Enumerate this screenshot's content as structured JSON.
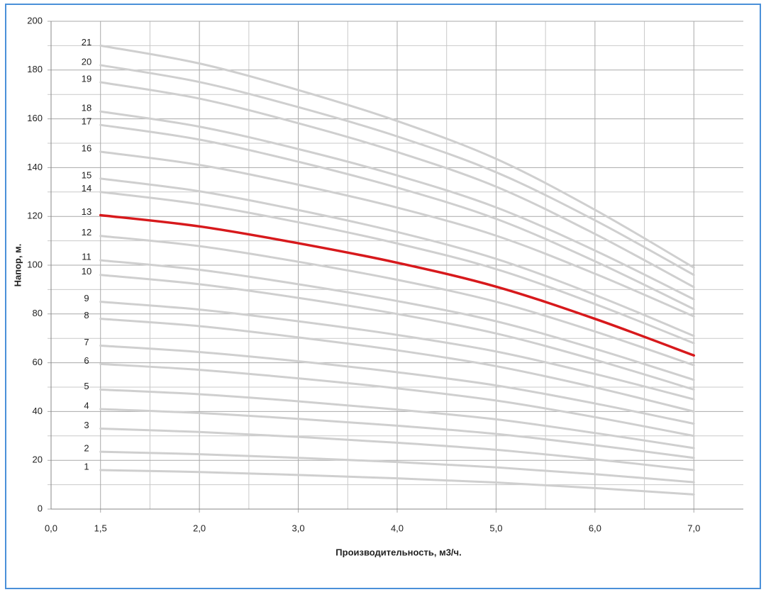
{
  "chart_data": {
    "type": "line",
    "x_axis_label": "Производительность, м3/ч.",
    "y_axis_label": "Напор, м.",
    "x_origin_label": "0,0",
    "categories": [
      "1,5",
      "2,0",
      "3,0",
      "4,0",
      "5,0",
      "6,0",
      "7,0"
    ],
    "ylim": [
      0,
      200
    ],
    "yticks": [
      0,
      20,
      40,
      60,
      80,
      100,
      120,
      140,
      160,
      180,
      200
    ],
    "yminor": [
      10,
      30,
      50,
      70,
      90,
      110,
      130,
      150,
      170,
      190
    ],
    "grid": true,
    "series": [
      {
        "name": "1",
        "color": "#cfcfcf",
        "values": [
          16,
          15.2,
          14,
          12.6,
          10.9,
          8.6,
          6
        ]
      },
      {
        "name": "2",
        "color": "#cfcfcf",
        "values": [
          23.5,
          22.5,
          21,
          19.3,
          17.1,
          14.3,
          11
        ]
      },
      {
        "name": "3",
        "color": "#cfcfcf",
        "values": [
          33,
          31.6,
          29.6,
          27.2,
          24.3,
          20.4,
          16
        ]
      },
      {
        "name": "4",
        "color": "#cfcfcf",
        "values": [
          41,
          39.4,
          37,
          34.2,
          30.8,
          26.2,
          21
        ]
      },
      {
        "name": "5",
        "color": "#cfcfcf",
        "values": [
          49,
          47.1,
          44.2,
          40.8,
          36.8,
          31.2,
          25
        ]
      },
      {
        "name": "6",
        "color": "#cfcfcf",
        "values": [
          59.5,
          57.1,
          53.6,
          49.5,
          44.5,
          37.7,
          30
        ]
      },
      {
        "name": "7",
        "color": "#cfcfcf",
        "values": [
          67,
          64.4,
          60.6,
          56.1,
          50.7,
          43.3,
          35
        ]
      },
      {
        "name": "8",
        "color": "#cfcfcf",
        "values": [
          78,
          75,
          70.4,
          65.1,
          58.6,
          49.9,
          40
        ]
      },
      {
        "name": "9",
        "color": "#cfcfcf",
        "values": [
          85,
          81.8,
          77,
          71.4,
          64.6,
          55.4,
          45
        ]
      },
      {
        "name": "10",
        "color": "#cfcfcf",
        "values": [
          96,
          92.2,
          86.6,
          80,
          72,
          61.2,
          49
        ]
      },
      {
        "name": "11",
        "color": "#cfcfcf",
        "values": [
          102,
          98.1,
          92.2,
          85.3,
          77,
          65.7,
          53
        ]
      },
      {
        "name": "12",
        "color": "#cfcfcf",
        "values": [
          112,
          107.8,
          101.4,
          94,
          85,
          72.8,
          59
        ]
      },
      {
        "name": "13",
        "color": "#d7191c",
        "values": [
          120.5,
          115.9,
          109,
          101,
          91.2,
          78,
          63
        ]
      },
      {
        "name": "14",
        "color": "#cfcfcf",
        "values": [
          130,
          125,
          117.6,
          108.9,
          98.4,
          84.1,
          68
        ]
      },
      {
        "name": "15",
        "color": "#cfcfcf",
        "values": [
          135.5,
          130.3,
          122.6,
          113.6,
          102.6,
          87.8,
          71
        ]
      },
      {
        "name": "16",
        "color": "#cfcfcf",
        "values": [
          146.5,
          141.1,
          133,
          123.6,
          112.1,
          96.5,
          79
        ]
      },
      {
        "name": "17",
        "color": "#cfcfcf",
        "values": [
          157.5,
          151.5,
          142.4,
          131.8,
          119,
          101.6,
          82
        ]
      },
      {
        "name": "18",
        "color": "#cfcfcf",
        "values": [
          163,
          156.8,
          147.6,
          136.8,
          123.7,
          106,
          86
        ]
      },
      {
        "name": "19",
        "color": "#cfcfcf",
        "values": [
          175,
          168.3,
          158.2,
          146.4,
          132.2,
          112.8,
          91
        ]
      },
      {
        "name": "20",
        "color": "#cfcfcf",
        "values": [
          182,
          175.1,
          164.8,
          152.8,
          138.1,
          118.4,
          96
        ]
      },
      {
        "name": "21",
        "color": "#cfcfcf",
        "values": [
          190,
          182.7,
          171.8,
          159.1,
          143.6,
          122.7,
          99
        ]
      }
    ]
  }
}
